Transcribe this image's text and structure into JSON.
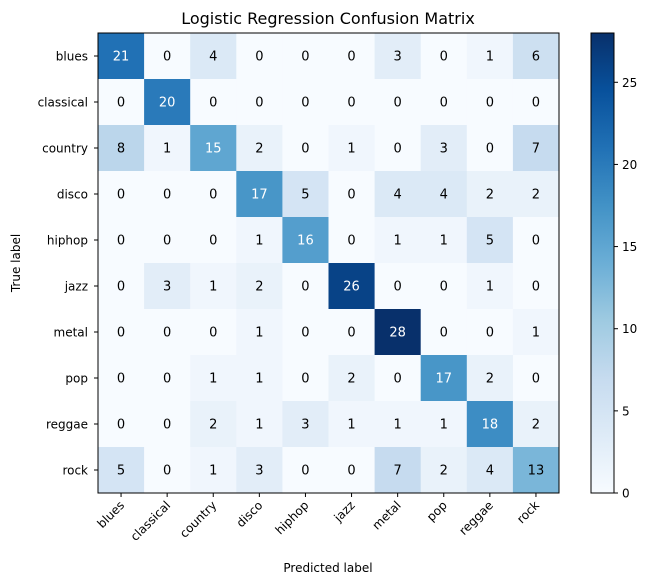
{
  "chart_data": {
    "type": "heatmap",
    "title": "Logistic Regression Confusion Matrix",
    "xlabel": "Predicted label",
    "ylabel": "True label",
    "x_categories": [
      "blues",
      "classical",
      "country",
      "disco",
      "hiphop",
      "jazz",
      "metal",
      "pop",
      "reggae",
      "rock"
    ],
    "y_categories": [
      "blues",
      "classical",
      "country",
      "disco",
      "hiphop",
      "jazz",
      "metal",
      "pop",
      "reggae",
      "rock"
    ],
    "matrix": [
      [
        21,
        0,
        4,
        0,
        0,
        0,
        3,
        0,
        1,
        6
      ],
      [
        0,
        20,
        0,
        0,
        0,
        0,
        0,
        0,
        0,
        0
      ],
      [
        8,
        1,
        15,
        2,
        0,
        1,
        0,
        3,
        0,
        7
      ],
      [
        0,
        0,
        0,
        17,
        5,
        0,
        4,
        4,
        2,
        2
      ],
      [
        0,
        0,
        0,
        1,
        16,
        0,
        1,
        1,
        5,
        0
      ],
      [
        0,
        3,
        1,
        2,
        0,
        26,
        0,
        0,
        1,
        0
      ],
      [
        0,
        0,
        0,
        1,
        0,
        0,
        28,
        0,
        0,
        1
      ],
      [
        0,
        0,
        1,
        1,
        0,
        2,
        0,
        17,
        2,
        0
      ],
      [
        0,
        0,
        2,
        1,
        3,
        1,
        1,
        1,
        18,
        2
      ],
      [
        5,
        0,
        1,
        3,
        0,
        0,
        7,
        2,
        4,
        13
      ]
    ],
    "colorscale": "Blues",
    "vmin": 0,
    "vmax": 28,
    "colorbar_ticks": [
      0,
      5,
      10,
      15,
      20,
      25
    ],
    "x_tick_rotation": "45-degrees",
    "grid": false,
    "legend": "colorbar-right"
  }
}
